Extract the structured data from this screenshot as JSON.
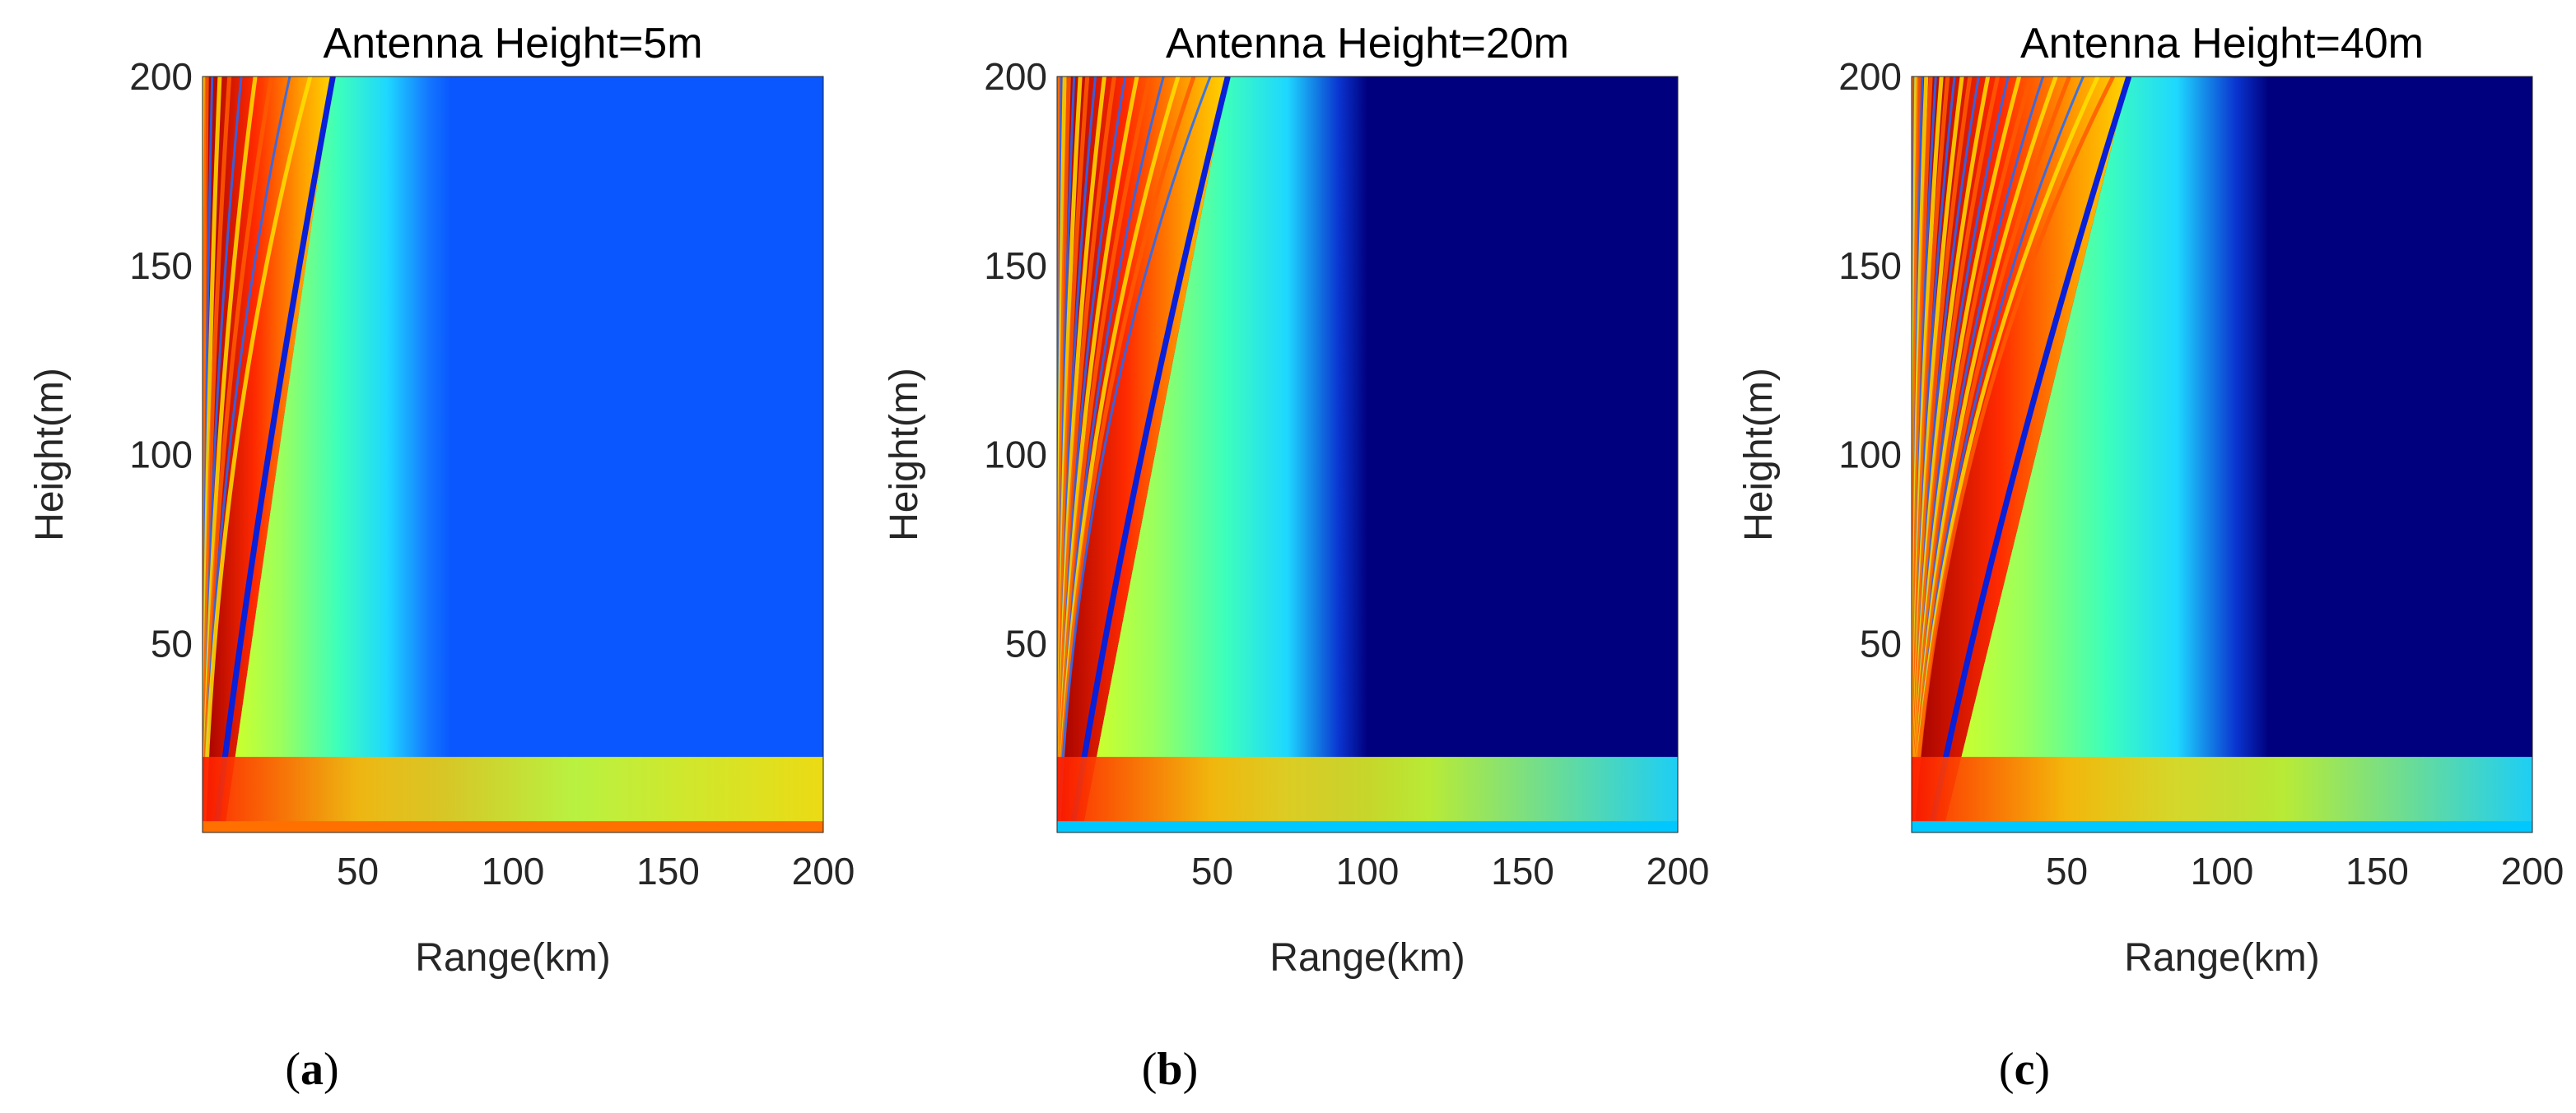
{
  "chart_data": [
    {
      "type": "heatmap",
      "title": "Antenna Height=5m",
      "xlabel": "Range(km)",
      "ylabel": "Height(m)",
      "xlim": [
        0,
        200
      ],
      "ylim": [
        0,
        200
      ],
      "xticks": [
        50,
        100,
        150,
        200
      ],
      "yticks": [
        50,
        100,
        150,
        200
      ],
      "colormap": "jet",
      "far_field_color": "#0a57ff",
      "main_null_range_km": [
        7,
        42
      ],
      "caption_letter": "a"
    },
    {
      "type": "heatmap",
      "title": "Antenna Height=20m",
      "xlabel": "Range(km)",
      "ylabel": "Height(m)",
      "xlim": [
        0,
        200
      ],
      "ylim": [
        0,
        200
      ],
      "xticks": [
        50,
        100,
        150,
        200
      ],
      "yticks": [
        50,
        100,
        150,
        200
      ],
      "colormap": "jet",
      "far_field_color": "#00007e",
      "main_null_range_km": [
        8,
        55
      ],
      "caption_letter": "b"
    },
    {
      "type": "heatmap",
      "title": "Antenna Height=40m",
      "xlabel": "Range(km)",
      "ylabel": "Height(m)",
      "xlim": [
        0,
        200
      ],
      "ylim": [
        0,
        200
      ],
      "xticks": [
        50,
        100,
        150,
        200
      ],
      "yticks": [
        50,
        100,
        150,
        200
      ],
      "colormap": "jet",
      "far_field_color": "#00007e",
      "main_null_range_km": [
        10,
        70
      ],
      "caption_letter": "c"
    }
  ]
}
